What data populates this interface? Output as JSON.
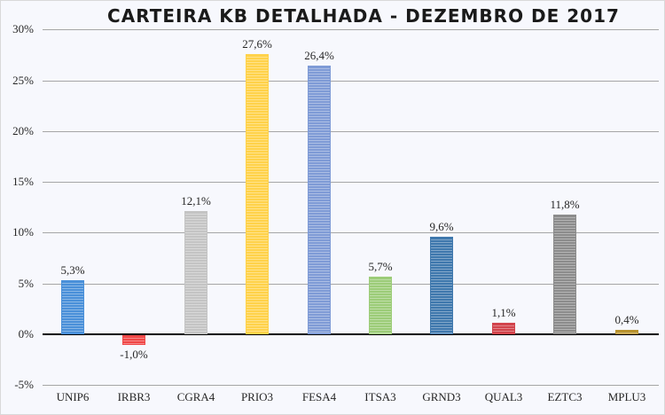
{
  "chart_data": {
    "type": "bar",
    "title": "CARTEIRA KB DETALHADA - DEZEMBRO DE 2017",
    "xlabel": "",
    "ylabel": "",
    "ylim": [
      -5,
      30
    ],
    "yticks": [
      "30%",
      "25%",
      "20%",
      "15%",
      "10%",
      "5%",
      "0%",
      "-5%"
    ],
    "grid": true,
    "legend": null,
    "categories": [
      "UNIP6",
      "IRBR3",
      "CGRA4",
      "PRIO3",
      "FESA4",
      "ITSA3",
      "GRND3",
      "QUAL3",
      "EZTC3",
      "MPLU3"
    ],
    "values": [
      5.3,
      -1.0,
      12.1,
      27.6,
      26.4,
      5.7,
      9.6,
      1.1,
      11.8,
      0.4
    ],
    "labels": [
      "5,3%",
      "-1,0%",
      "12,1%",
      "27,6%",
      "26,4%",
      "5,7%",
      "9,6%",
      "1,1%",
      "11,8%",
      "0,4%"
    ],
    "colors": [
      "#4a90d9",
      "#f04848",
      "#c4c4c4",
      "#ffd24a",
      "#7f9bd6",
      "#9ccc78",
      "#3f78ad",
      "#d2444c",
      "#8c8c8c",
      "#b8922e"
    ]
  }
}
